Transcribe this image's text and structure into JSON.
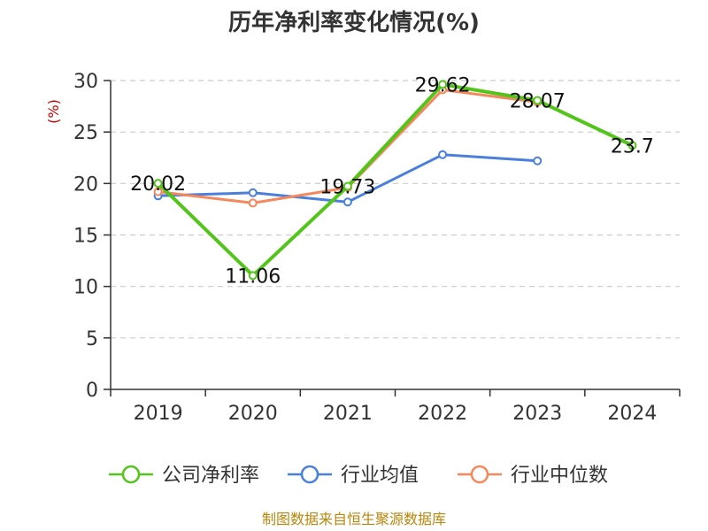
{
  "chart_data": {
    "type": "line",
    "title": "历年净利率变化情况(%)",
    "ylabel": "(%)",
    "xlabel": "",
    "categories": [
      "2019",
      "2020",
      "2021",
      "2022",
      "2023",
      "2024"
    ],
    "ylim": [
      0,
      30
    ],
    "yticks": [
      0,
      5,
      10,
      15,
      20,
      25,
      30
    ],
    "grid": "horizontal dashed",
    "legend_position": "bottom",
    "series": [
      {
        "name": "公司净利率",
        "color": "#52c41a",
        "values": [
          20.02,
          11.06,
          19.73,
          29.62,
          28.07,
          23.7
        ],
        "labels": [
          "20.02",
          "11.06",
          "19.73",
          "29.62",
          "28.07",
          "23.7"
        ]
      },
      {
        "name": "行业均值",
        "color": "#4a7fdc",
        "values": [
          18.8,
          19.1,
          18.2,
          22.8,
          22.2,
          null
        ]
      },
      {
        "name": "行业中位数",
        "color": "#f5875c",
        "values": [
          19.2,
          18.1,
          19.6,
          29.1,
          27.9,
          null
        ]
      }
    ]
  },
  "source": "制图数据来自恒生聚源数据库"
}
